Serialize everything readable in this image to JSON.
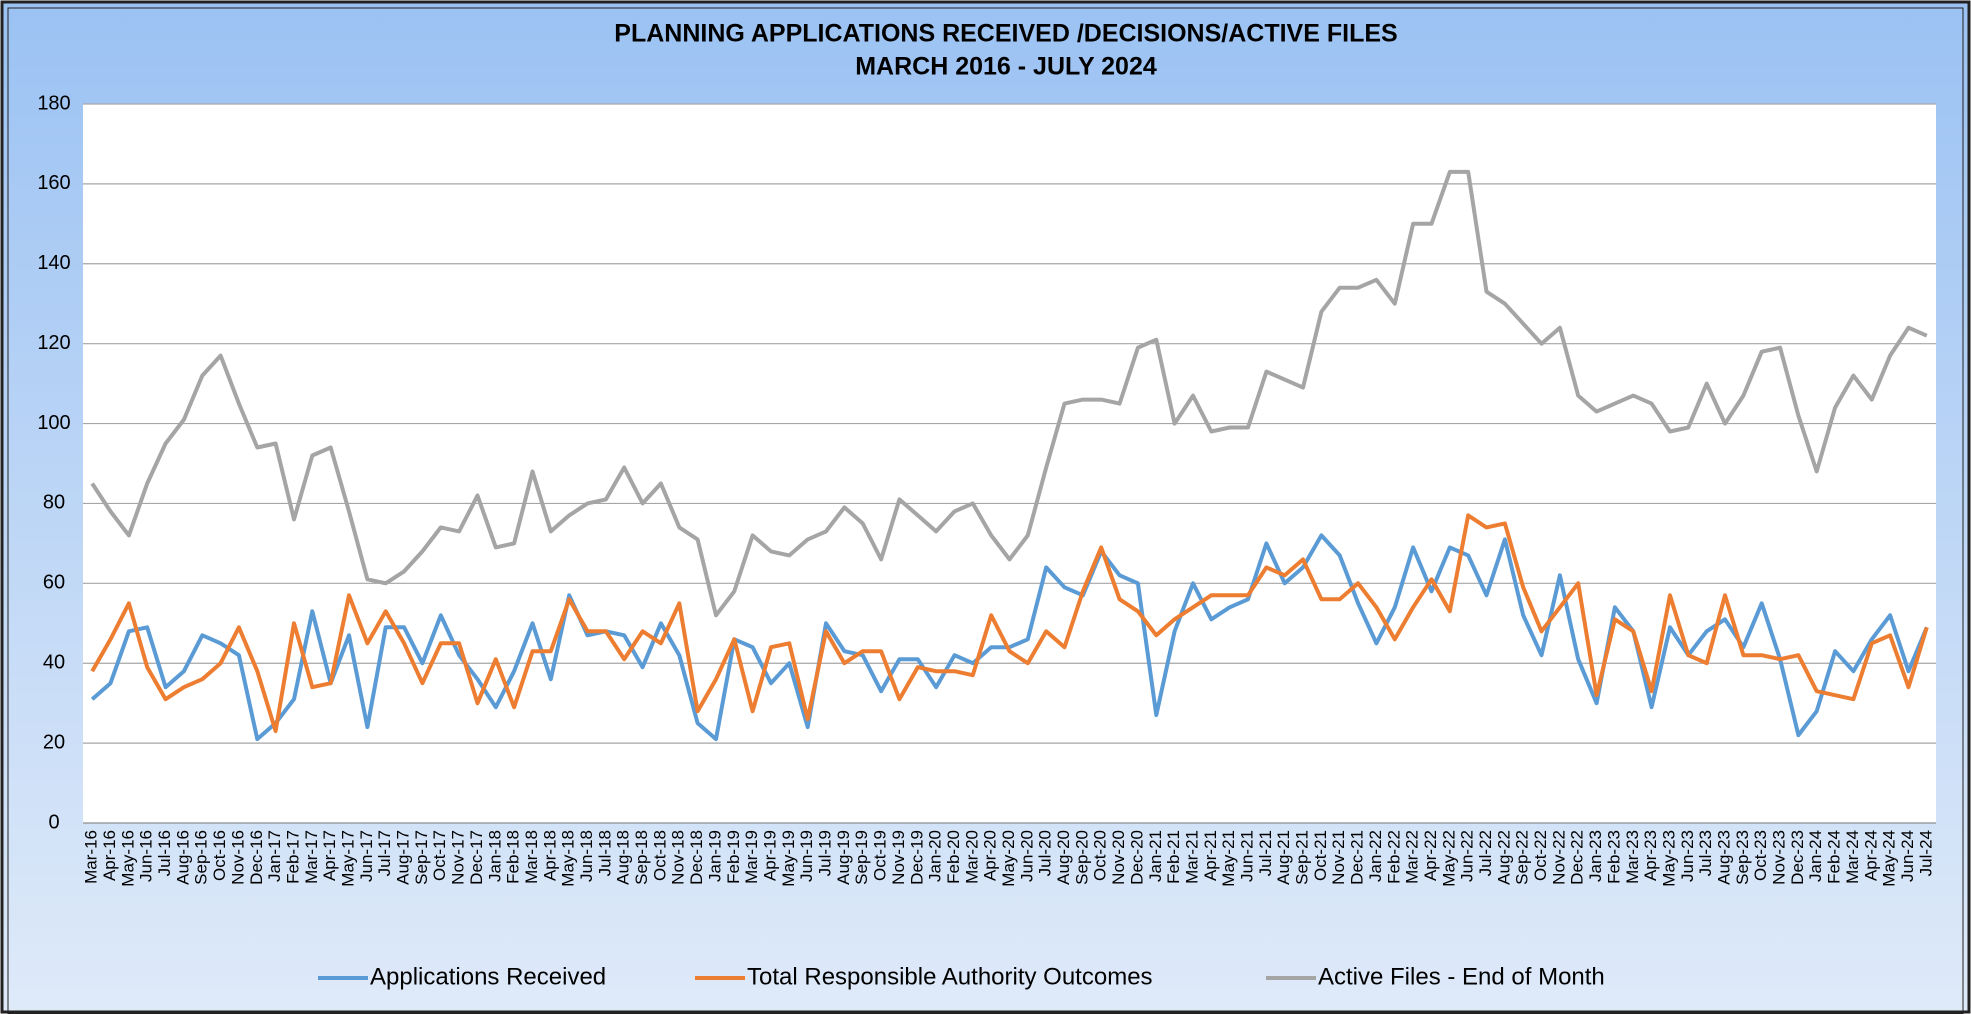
{
  "chart_data": {
    "type": "line",
    "title": "PLANNING APPLICATIONS RECEIVED /DECISIONS/ACTIVE FILES",
    "subtitle": "MARCH 2016 - JULY 2024",
    "categories": [
      "Mar-16",
      "Apr-16",
      "May-16",
      "Jun-16",
      "Jul-16",
      "Aug-16",
      "Sep-16",
      "Oct-16",
      "Nov-16",
      "Dec-16",
      "Jan-17",
      "Feb-17",
      "Mar-17",
      "Apr-17",
      "May-17",
      "Jun-17",
      "Jul-17",
      "Aug-17",
      "Sep-17",
      "Oct-17",
      "Nov-17",
      "Dec-17",
      "Jan-18",
      "Feb-18",
      "Mar-18",
      "Apr-18",
      "May-18",
      "Jun-18",
      "Jul-18",
      "Aug-18",
      "Sep-18",
      "Oct-18",
      "Nov-18",
      "Dec-18",
      "Jan-19",
      "Feb-19",
      "Mar-19",
      "Apr-19",
      "May-19",
      "Jun-19",
      "Jul-19",
      "Aug-19",
      "Sep-19",
      "Oct-19",
      "Nov-19",
      "Dec-19",
      "Jan-20",
      "Feb-20",
      "Mar-20",
      "Apr-20",
      "May-20",
      "Jun-20",
      "Jul-20",
      "Aug-20",
      "Sep-20",
      "Oct-20",
      "Nov-20",
      "Dec-20",
      "Jan-21",
      "Feb-21",
      "Mar-21",
      "Apr-21",
      "May-21",
      "Jun-21",
      "Jul-21",
      "Aug-21",
      "Sep-21",
      "Oct-21",
      "Nov-21",
      "Dec-21",
      "Jan-22",
      "Feb-22",
      "Mar-22",
      "Apr-22",
      "May-22",
      "Jun-22",
      "Jul-22",
      "Aug-22",
      "Sep-22",
      "Oct-22",
      "Nov-22",
      "Dec-22",
      "Jan-23",
      "Feb-23",
      "Mar-23",
      "Apr-23",
      "May-23",
      "Jun-23",
      "Jul-23",
      "Aug-23",
      "Sep-23",
      "Oct-23",
      "Nov-23",
      "Dec-23",
      "Jan-24",
      "Feb-24",
      "Mar-24",
      "Apr-24",
      "May-24",
      "Jun-24",
      "Jul-24"
    ],
    "series": [
      {
        "name": "Applications Received",
        "color": "#5b9bd5",
        "values": [
          31,
          35,
          48,
          49,
          34,
          38,
          47,
          45,
          42,
          21,
          25,
          31,
          53,
          35,
          47,
          24,
          49,
          49,
          40,
          52,
          42,
          36,
          29,
          38,
          50,
          36,
          57,
          47,
          48,
          47,
          39,
          50,
          42,
          25,
          21,
          46,
          44,
          35,
          40,
          24,
          50,
          43,
          42,
          33,
          41,
          41,
          34,
          42,
          40,
          44,
          44,
          46,
          64,
          59,
          57,
          68,
          62,
          60,
          27,
          48,
          60,
          51,
          54,
          56,
          70,
          60,
          64,
          72,
          67,
          55,
          45,
          54,
          69,
          58,
          69,
          67,
          57,
          71,
          52,
          42,
          62,
          41,
          30,
          54,
          48,
          29,
          49,
          42,
          48,
          51,
          44,
          55,
          41,
          22,
          28,
          43,
          38,
          46,
          52,
          38,
          49
        ]
      },
      {
        "name": "Total Responsible Authority Outcomes",
        "color": "#ed7d31",
        "values": [
          38,
          46,
          55,
          39,
          31,
          34,
          36,
          40,
          49,
          38,
          23,
          50,
          34,
          35,
          57,
          45,
          53,
          45,
          35,
          45,
          45,
          30,
          41,
          29,
          43,
          43,
          56,
          48,
          48,
          41,
          48,
          45,
          55,
          28,
          36,
          46,
          28,
          44,
          45,
          26,
          48,
          40,
          43,
          43,
          31,
          39,
          38,
          38,
          37,
          52,
          43,
          40,
          48,
          44,
          58,
          69,
          56,
          53,
          47,
          51,
          54,
          57,
          57,
          57,
          64,
          62,
          66,
          56,
          56,
          60,
          54,
          46,
          54,
          61,
          53,
          77,
          74,
          75,
          59,
          48,
          54,
          60,
          32,
          51,
          48,
          33,
          57,
          42,
          40,
          57,
          42,
          42,
          41,
          42,
          33,
          32,
          31,
          45,
          47,
          34,
          49
        ]
      },
      {
        "name": "Active Files - End of Month",
        "color": "#a5a5a5",
        "values": [
          85,
          78,
          72,
          85,
          95,
          101,
          112,
          117,
          105,
          94,
          95,
          76,
          92,
          94,
          78,
          61,
          60,
          63,
          68,
          74,
          73,
          82,
          69,
          70,
          88,
          73,
          77,
          80,
          81,
          89,
          80,
          85,
          74,
          71,
          52,
          58,
          72,
          68,
          67,
          71,
          73,
          79,
          75,
          66,
          81,
          77,
          73,
          78,
          80,
          72,
          66,
          72,
          89,
          105,
          106,
          106,
          105,
          119,
          121,
          100,
          107,
          98,
          99,
          99,
          113,
          111,
          109,
          128,
          134,
          134,
          136,
          130,
          150,
          150,
          163,
          163,
          133,
          130,
          125,
          120,
          124,
          107,
          103,
          105,
          107,
          105,
          98,
          99,
          110,
          100,
          107,
          118,
          119,
          102,
          88,
          104,
          112,
          106,
          117,
          124,
          122
        ]
      }
    ],
    "ylim": [
      0,
      180
    ],
    "yticks": [
      0,
      20,
      40,
      60,
      80,
      100,
      120,
      140,
      160,
      180
    ],
    "grid": true,
    "legend": "bottom"
  }
}
